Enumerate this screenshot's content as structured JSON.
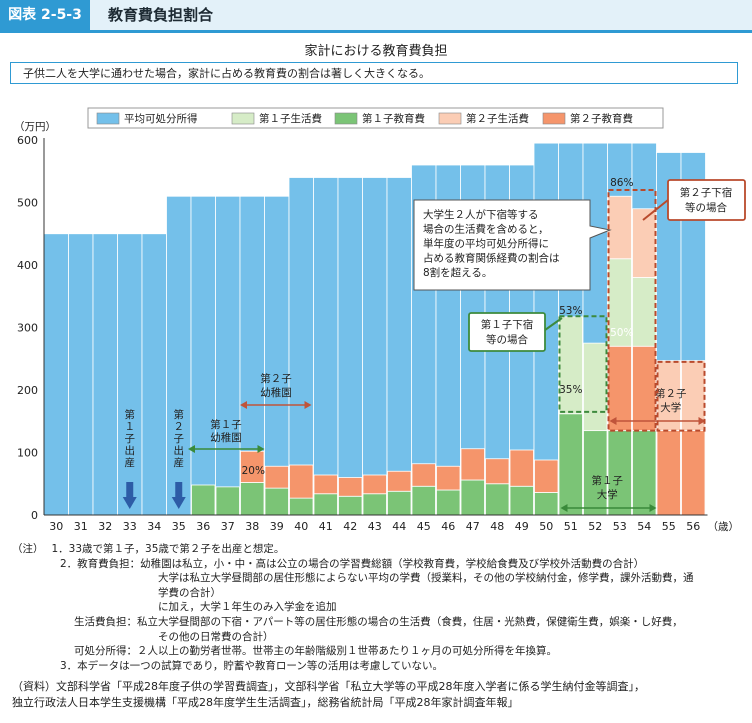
{
  "header": {
    "figure_no": "図表 2-5-3",
    "title": "教育費負担割合"
  },
  "chart_title": "家計における教育費負担",
  "summary": "子供二人を大学に通わせた場合，家計に占める教育費の割合は著しく大きくなる。",
  "chart_data": {
    "type": "bar",
    "stacked": true,
    "y_unit": "（万円）",
    "x_unit": "（歳）",
    "ylim": [
      0,
      600
    ],
    "yticks": [
      0,
      100,
      200,
      300,
      400,
      500,
      600
    ],
    "grid": false,
    "legend_position": "top",
    "categories": [
      "30",
      "31",
      "32",
      "33",
      "34",
      "35",
      "36",
      "37",
      "38",
      "39",
      "40",
      "41",
      "42",
      "43",
      "44",
      "45",
      "46",
      "47",
      "48",
      "49",
      "50",
      "51",
      "52",
      "53",
      "54",
      "55",
      "56"
    ],
    "disposable_income": {
      "name": "平均可処分所得",
      "color": "#74c0ea",
      "values": [
        450,
        450,
        450,
        450,
        450,
        510,
        510,
        510,
        510,
        510,
        540,
        540,
        540,
        540,
        540,
        560,
        560,
        560,
        560,
        560,
        595,
        595,
        595,
        595,
        595,
        580,
        580
      ]
    },
    "series": [
      {
        "name": "第１子生活費",
        "color": "#d6ecc7",
        "values": [
          0,
          0,
          0,
          0,
          0,
          0,
          0,
          0,
          0,
          0,
          0,
          0,
          0,
          0,
          0,
          0,
          0,
          0,
          0,
          0,
          0,
          155,
          140,
          0,
          0,
          0,
          0
        ]
      },
      {
        "name": "第１子教育費",
        "color": "#7bc476",
        "values": [
          0,
          0,
          0,
          0,
          0,
          0,
          48,
          45,
          52,
          43,
          27,
          34,
          30,
          34,
          38,
          46,
          40,
          56,
          50,
          46,
          36,
          162,
          135,
          135,
          135,
          0,
          0
        ]
      },
      {
        "name": "第２子生活費",
        "color": "#fbcdb5",
        "values": [
          0,
          0,
          0,
          0,
          0,
          0,
          0,
          0,
          0,
          0,
          0,
          0,
          0,
          0,
          0,
          0,
          0,
          0,
          0,
          0,
          0,
          0,
          0,
          0,
          0,
          112,
          112
        ]
      },
      {
        "name": "第２子教育費",
        "color": "#f5956b",
        "values": [
          0,
          0,
          0,
          0,
          0,
          0,
          0,
          0,
          50,
          35,
          53,
          30,
          30,
          30,
          32,
          36,
          38,
          50,
          40,
          58,
          52,
          0,
          0,
          0,
          0,
          135,
          135
        ]
      }
    ],
    "combined_bars": [
      {
        "category": "53",
        "segments": [
          {
            "series": "第１子教育費",
            "value": 135
          },
          {
            "series": "第２子教育費",
            "value": 135
          },
          {
            "series": "第１子生活費",
            "value": 140
          },
          {
            "series": "第２子生活費",
            "value": 100
          }
        ]
      },
      {
        "category": "54",
        "segments": [
          {
            "series": "第１子教育費",
            "value": 135
          },
          {
            "series": "第２子教育費",
            "value": 135
          },
          {
            "series": "第１子生活費",
            "value": 110
          },
          {
            "series": "第２子生活費",
            "value": 110
          }
        ]
      }
    ],
    "annotations": {
      "child1_birth": "第１子出産",
      "child2_birth": "第２子出産",
      "child1_kindergarten": "第１子幼稚園",
      "child2_kindergarten": "第２子幼稚園",
      "child1_university": "第１子大学",
      "child2_university": "第２子大学",
      "pct_20": "20%",
      "pct_35": "35%",
      "pct_53": "53%",
      "pct_50": "50%",
      "pct_86": "86%",
      "child1_away_box": "第１子下宿等の場合",
      "child2_away_box": "第２子下宿等の場合",
      "callout": "大学生２人が下宿等する場合の生活費を含めると，単年度の平均可処分所得に占める教育関係経費の割合は8割を超える。"
    }
  },
  "notes": {
    "label": "（注）",
    "items": [
      "1．33歳で第１子，35歳で第２子を出産と想定。",
      "2．教育費負担：幼稚園は私立，小・中・高は公立の場合の学習費総額（学校教育費，学校給食費及び学校外活動費の合計）",
      "大学は私立大学昼間部の居住形態によらない平均の学費（授業料，その他の学校納付金，修学費，課外活動費，通",
      "学費の合計）",
      "に加え，大学１年生のみ入学金を追加",
      "生活費負担：私立大学昼間部の下宿・アパート等の居住形態の場合の生活費（食費，住居・光熱費，保健衛生費，娯楽・し好費，",
      "その他の日常費の合計）",
      "可処分所得：２人以上の勤労者世帯。世帯主の年齢階級別１世帯あたり１ヶ月の可処分所得を年換算。",
      "3．本データは一つの試算であり，貯蓄や教育ローン等の活用は考慮していない。"
    ]
  },
  "source": {
    "label": "（資料）",
    "line1": "文部科学省「平成28年度子供の学習費調査」，文部科学省「私立大学等の平成28年度入学者に係る学生納付金等調査」，",
    "line2": "独立行政法人日本学生支援機構「平成28年度学生生活調査」，総務省統計局「平成28年家計調査年報」"
  }
}
